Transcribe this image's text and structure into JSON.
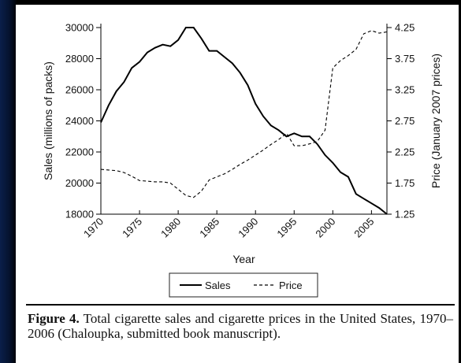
{
  "chart_data": {
    "type": "line",
    "title": "",
    "xlabel": "Year",
    "ylabel_left": "Sales (millions of packs)",
    "ylabel_right": "Price (January 2007 prices)",
    "xlim": [
      1970,
      2007
    ],
    "ylim_left": [
      18000,
      30000
    ],
    "ylim_right": [
      1.25,
      4.25
    ],
    "x_ticks": [
      "1970",
      "1975",
      "1980",
      "1985",
      "1990",
      "1995",
      "2000",
      "2005"
    ],
    "y_left_ticks": [
      "18000",
      "20000",
      "22000",
      "24000",
      "26000",
      "28000",
      "30000"
    ],
    "y_right_ticks": [
      "1.25",
      "1.75",
      "2.25",
      "2.75",
      "3.25",
      "3.75",
      "4.25"
    ],
    "legend_position": "bottom",
    "series": [
      {
        "name": "Sales",
        "axis": "left",
        "style": "solid",
        "x": [
          1970,
          1971,
          1972,
          1973,
          1974,
          1975,
          1976,
          1977,
          1978,
          1979,
          1980,
          1981,
          1982,
          1983,
          1984,
          1985,
          1986,
          1987,
          1988,
          1989,
          1990,
          1991,
          1992,
          1993,
          1994,
          1995,
          1996,
          1997,
          1998,
          1999,
          2000,
          2001,
          2002,
          2003,
          2004,
          2005,
          2006,
          2007
        ],
        "values": [
          23900,
          25000,
          25900,
          26500,
          27400,
          27800,
          28400,
          28700,
          28900,
          28800,
          29200,
          30000,
          30000,
          29300,
          28500,
          28500,
          28100,
          27700,
          27100,
          26300,
          25100,
          24300,
          23700,
          23400,
          23000,
          23200,
          23000,
          23000,
          22500,
          21800,
          21300,
          20700,
          20400,
          19300,
          19000,
          18700,
          18400,
          18000
        ]
      },
      {
        "name": "Price",
        "axis": "right",
        "style": "dashed",
        "x": [
          1970,
          1971,
          1972,
          1973,
          1974,
          1975,
          1976,
          1977,
          1978,
          1979,
          1980,
          1981,
          1982,
          1983,
          1984,
          1985,
          1986,
          1987,
          1988,
          1989,
          1990,
          1991,
          1992,
          1993,
          1994,
          1995,
          1996,
          1997,
          1998,
          1999,
          2000,
          2001,
          2002,
          2003,
          2004,
          2005,
          2006,
          2007
        ],
        "values": [
          1.97,
          1.96,
          1.95,
          1.92,
          1.86,
          1.79,
          1.78,
          1.77,
          1.77,
          1.75,
          1.65,
          1.55,
          1.52,
          1.62,
          1.8,
          1.85,
          1.9,
          1.97,
          2.05,
          2.12,
          2.2,
          2.28,
          2.37,
          2.45,
          2.55,
          2.35,
          2.35,
          2.38,
          2.42,
          2.6,
          3.6,
          3.72,
          3.8,
          3.9,
          4.15,
          4.2,
          4.16,
          4.18
        ]
      }
    ]
  },
  "legend": {
    "sales_label": "Sales",
    "price_label": "Price"
  },
  "caption": {
    "label": "Figure 4.",
    "text": " Total cigarette sales and cigarette prices in the United States, 1970–2006 (Chaloupka, submitted book manuscript)."
  }
}
